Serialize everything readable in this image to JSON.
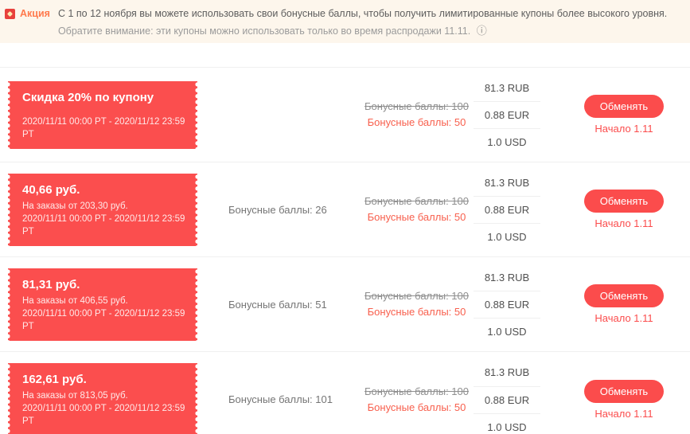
{
  "banner": {
    "icon": "aliexpress-app-icon",
    "badge_label": "Акция",
    "text_main": "С 1 по 12 ноября вы можете использовать свои бонусные баллы, чтобы получить лимитированные купоны более высокого уровня.",
    "text_note": "Обратите внимание: эти купоны можно использовать только во время распродажи 11.11.",
    "info_icon_glyph": "ⓘ",
    "bg_color": "#fdf6ec",
    "badge_color": "#ff7a4d"
  },
  "colors": {
    "coupon_red": "#fb4e4e",
    "accent_red": "#fb4c4c",
    "new_points_red": "#f8604e",
    "old_points_gray": "#8f8f8f",
    "divider": "#f0f0f0"
  },
  "rows": [
    {
      "coupon": {
        "title": "Скидка 20% по купону",
        "min_order": "",
        "dates": "2020/11/11 00:00 PT - 2020/11/12 23:59 PT"
      },
      "points_label": "",
      "old_points": "Бонусные баллы: 100",
      "new_points": "Бонусные баллы: 50",
      "currencies": [
        "81.3 RUB",
        "0.88 EUR",
        "1.0 USD"
      ],
      "button_label": "Обменять",
      "start_label": "Начало 1.11"
    },
    {
      "coupon": {
        "title": "40,66 руб.",
        "min_order": "На заказы от 203,30 руб.",
        "dates": "2020/11/11 00:00 PT - 2020/11/12 23:59 PT"
      },
      "points_label": "Бонусные баллы: 26",
      "old_points": "Бонусные баллы: 100",
      "new_points": "Бонусные баллы: 50",
      "currencies": [
        "81.3 RUB",
        "0.88 EUR",
        "1.0 USD"
      ],
      "button_label": "Обменять",
      "start_label": "Начало 1.11"
    },
    {
      "coupon": {
        "title": "81,31 руб.",
        "min_order": "На заказы от 406,55 руб.",
        "dates": "2020/11/11 00:00 PT - 2020/11/12 23:59 PT"
      },
      "points_label": "Бонусные баллы: 51",
      "old_points": "Бонусные баллы: 100",
      "new_points": "Бонусные баллы: 50",
      "currencies": [
        "81.3 RUB",
        "0.88 EUR",
        "1.0 USD"
      ],
      "button_label": "Обменять",
      "start_label": "Начало 1.11"
    },
    {
      "coupon": {
        "title": "162,61 руб.",
        "min_order": "На заказы от 813,05 руб.",
        "dates": "2020/11/11 00:00 PT - 2020/11/12 23:59 PT"
      },
      "points_label": "Бонусные баллы: 101",
      "old_points": "Бонусные баллы: 100",
      "new_points": "Бонусные баллы: 50",
      "currencies": [
        "81.3 RUB",
        "0.88 EUR",
        "1.0 USD"
      ],
      "button_label": "Обменять",
      "start_label": "Начало 1.11"
    }
  ]
}
